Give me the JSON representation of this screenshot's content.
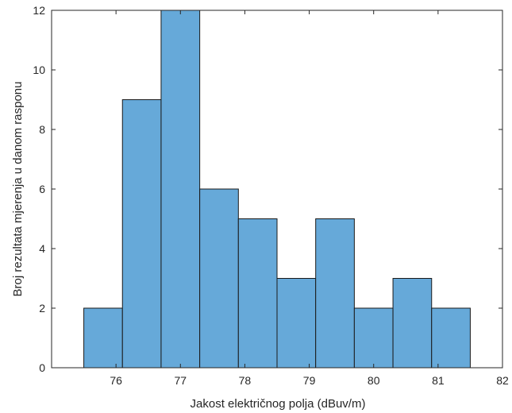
{
  "chart_data": {
    "type": "bar",
    "title": "",
    "xlabel": "Jakost električnog polja (dBuv/m)",
    "ylabel": "Broj rezultata mjerenja u danom rasponu",
    "xlim": [
      75,
      82
    ],
    "ylim": [
      0,
      12
    ],
    "bin_edges": [
      75.5,
      76.1,
      76.7,
      77.3,
      77.9,
      78.5,
      79.1,
      79.7,
      80.3,
      80.9,
      81.5
    ],
    "values": [
      2,
      9,
      12,
      6,
      5,
      3,
      5,
      2,
      3,
      2
    ],
    "xticks": [
      76,
      77,
      78,
      79,
      80,
      81,
      82
    ],
    "xtick_labels": [
      "76",
      "77",
      "78",
      "79",
      "80",
      "81",
      "82"
    ],
    "yticks": [
      0,
      2,
      4,
      6,
      8,
      10,
      12
    ],
    "ytick_labels": [
      "0",
      "2",
      "4",
      "6",
      "8",
      "10",
      "12"
    ],
    "grid": false,
    "bar_color": "#66a9d9",
    "bar_edge_color": "#1a1a1a",
    "axis_color": "#262626"
  }
}
